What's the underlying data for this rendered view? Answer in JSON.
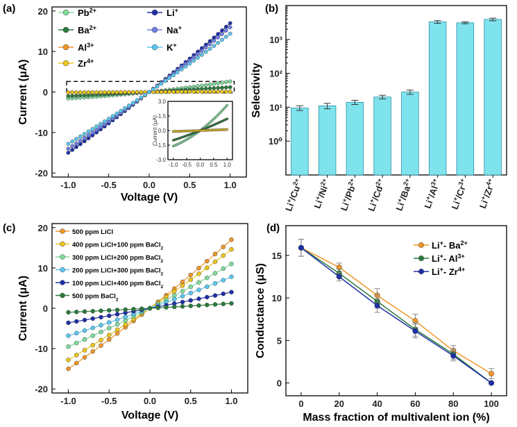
{
  "chart_data": [
    {
      "panel": "(a)",
      "type": "line",
      "xlabel": "Voltage (V)",
      "ylabel": "Current (μA)",
      "xlim": [
        -1.2,
        1.2
      ],
      "ylim": [
        -21,
        21
      ],
      "xticks": [
        "-1.0",
        "-0.5",
        "0.0",
        "0.5",
        "1.0"
      ],
      "yticks": [
        "-20",
        "-10",
        "0",
        "10",
        "20"
      ],
      "legend": "top",
      "series": [
        {
          "name": "Pb2+",
          "label": "Pb",
          "sup": "2+",
          "color": "#7fdc9c",
          "marker": "circle",
          "filled": true,
          "i_min": -1.6,
          "i_max": 2.6
        },
        {
          "name": "Ba2+",
          "label": "Ba",
          "sup": "2+",
          "color": "#2b7a3c",
          "marker": "circle",
          "filled": true,
          "i_min": -1.0,
          "i_max": 1.2
        },
        {
          "name": "Al3+",
          "label": "Al",
          "sup": "3+",
          "color": "#f0962a",
          "marker": "circle",
          "filled": true,
          "i_min": -0.1,
          "i_max": 0.1
        },
        {
          "name": "Zr4+",
          "label": "Zr",
          "sup": "4+",
          "color": "#ecc61c",
          "marker": "circle",
          "filled": true,
          "i_min": -0.1,
          "i_max": 0.1
        },
        {
          "name": "Li+",
          "label": "Li",
          "sup": "+",
          "color": "#1e2fa8",
          "marker": "circle",
          "filled": true,
          "i_min": -15.0,
          "i_max": 17.0
        },
        {
          "name": "Na+",
          "label": "Na",
          "sup": "+",
          "color": "#6f7fe6",
          "marker": "circle",
          "filled": true,
          "i_min": -14.0,
          "i_max": 16.0
        },
        {
          "name": "K+",
          "label": "K",
          "sup": "+",
          "color": "#5cc7f0",
          "marker": "circle",
          "filled": true,
          "i_min": -12.8,
          "i_max": 14.4
        }
      ],
      "inset": {
        "ylabel": "Current (μA)",
        "xlim": [
          -1.2,
          1.2
        ],
        "ylim": [
          -3.0,
          3.0
        ],
        "xticks": [
          "-1.0",
          "-0.5",
          "0.0",
          "0.5",
          "1.0"
        ],
        "yticks": [
          "-3.0",
          "-1.5",
          "0.0",
          "1.5",
          "3.0"
        ]
      }
    },
    {
      "panel": "(b)",
      "type": "bar",
      "ylabel": "Selectivity",
      "yscale": "log",
      "ylim": [
        0.1,
        10000
      ],
      "yticks": [
        "10⁰",
        "10¹",
        "10²",
        "10³"
      ],
      "bar_color": "#7fe3ee",
      "categories": [
        {
          "a": "Li",
          "asup": "+",
          "b": "/Cu",
          "bsup": "2+"
        },
        {
          "a": "Li",
          "asup": "+",
          "b": "/Ni",
          "bsup": "2+"
        },
        {
          "a": "Li",
          "asup": "+",
          "b": "/Pb",
          "bsup": "2+"
        },
        {
          "a": "Li",
          "asup": "+",
          "b": "/Cd",
          "bsup": "2+"
        },
        {
          "a": "Li",
          "asup": "+",
          "b": "/Ba",
          "bsup": "2+"
        },
        {
          "a": "Li",
          "asup": "+",
          "b": "/Al",
          "bsup": "3+"
        },
        {
          "a": "Li",
          "asup": "+",
          "b": "/Cr",
          "bsup": "3+"
        },
        {
          "a": "Li",
          "asup": "+",
          "b": "/Zr",
          "bsup": "4+"
        }
      ],
      "values": [
        9.5,
        11,
        14,
        20,
        28,
        3300,
        3100,
        3900
      ],
      "errors": [
        1.5,
        2,
        2,
        2.5,
        4,
        300,
        200,
        350
      ]
    },
    {
      "panel": "(c)",
      "type": "line",
      "xlabel": "Voltage (V)",
      "ylabel": "Current (μA)",
      "xlim": [
        -1.2,
        1.2
      ],
      "ylim": [
        -21,
        21
      ],
      "xticks": [
        "-1.0",
        "-0.5",
        "0.0",
        "0.5",
        "1.0"
      ],
      "yticks": [
        "-20",
        "-10",
        "0",
        "10",
        "20"
      ],
      "legend": "top-left",
      "series": [
        {
          "name": "500 ppm LiCl",
          "label": "500 ppm LiCl",
          "color": "#f0962a",
          "i_min": -15.0,
          "i_max": 17.0
        },
        {
          "name": "400 ppm LiCl+100 ppm BaCl2",
          "label": "400 ppm LiCl+100 ppm BaCl",
          "sub": "2",
          "color": "#ecc61c",
          "i_min": -12.8,
          "i_max": 14.6
        },
        {
          "name": "300 ppm LiCl+200 ppm BaCl2",
          "label": "300 ppm LiCl+200 ppm BaCl",
          "sub": "2",
          "color": "#7fdc9c",
          "i_min": -9.5,
          "i_max": 11.0
        },
        {
          "name": "200 ppm LiCl+300 ppm BaCl2",
          "label": "200 ppm LiCl+300 ppm BaCl",
          "sub": "2",
          "color": "#5cc7f0",
          "i_min": -6.8,
          "i_max": 7.8
        },
        {
          "name": "100 ppm LiCl+400 ppm BaCl2",
          "label": "100 ppm LiCl+400 ppm BaCl",
          "sub": "2",
          "color": "#1e2fa8",
          "i_min": -3.6,
          "i_max": 4.0
        },
        {
          "name": "500 ppm BaCl2",
          "label": "500 ppm BaCl",
          "sub": "2",
          "color": "#2b7a3c",
          "i_min": -1.0,
          "i_max": 1.2
        }
      ]
    },
    {
      "panel": "(d)",
      "type": "line",
      "xlabel": "Mass fraction of multivalent ion (%)",
      "ylabel": "Conductance (μS)",
      "xlim": [
        -8,
        108
      ],
      "ylim": [
        -1.5,
        18.5
      ],
      "xticks": [
        "0",
        "20",
        "40",
        "60",
        "80",
        "100"
      ],
      "yticks": [
        "0",
        "5",
        "10",
        "15"
      ],
      "legend": "top-right",
      "x": [
        0,
        20,
        40,
        60,
        80,
        100
      ],
      "series": [
        {
          "name": "Li+- Ba2+",
          "a": "Li",
          "asup": "+",
          "b": "- Ba",
          "bsup": "2+",
          "color": "#f0962a",
          "values": [
            15.9,
            13.6,
            10.3,
            7.3,
            3.8,
            1.1
          ],
          "errors": [
            1.0,
            0.5,
            0.8,
            0.8,
            0.6,
            0.6
          ]
        },
        {
          "name": "Li+- Al3+",
          "a": "Li",
          "asup": "+",
          "b": "- Al",
          "bsup": "3+",
          "color": "#2b7a3c",
          "values": [
            15.9,
            12.9,
            9.6,
            6.3,
            3.4,
            0.0
          ],
          "errors": [
            1.0,
            0.5,
            0.8,
            0.8,
            0.6,
            0.1
          ]
        },
        {
          "name": "Li+- Zr4+",
          "a": "Li",
          "asup": "+",
          "b": "- Zr",
          "bsup": "4+",
          "color": "#1e2fa8",
          "values": [
            15.9,
            12.5,
            9.1,
            6.1,
            3.2,
            0.0
          ],
          "errors": [
            1.0,
            0.5,
            0.8,
            0.8,
            0.6,
            0.1
          ]
        }
      ]
    }
  ]
}
